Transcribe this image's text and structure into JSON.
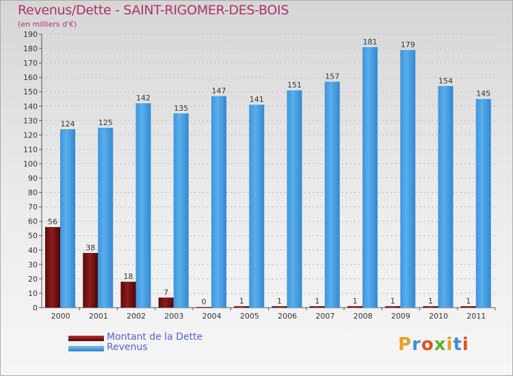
{
  "chart_data": {
    "type": "bar",
    "title": "Revenus/Dette - SAINT-RIGOMER-DES-BOIS",
    "subtitle": "(en milliers d'€)",
    "categories": [
      "2000",
      "2001",
      "2002",
      "2003",
      "2004",
      "2005",
      "2006",
      "2007",
      "2008",
      "2009",
      "2010",
      "2011"
    ],
    "series": [
      {
        "name": "Montant de la Dette",
        "values": [
          56,
          38,
          18,
          7,
          0,
          1,
          1,
          1,
          1,
          1,
          1,
          1
        ],
        "color": "#7a1414"
      },
      {
        "name": "Revenus",
        "values": [
          124,
          125,
          142,
          135,
          147,
          141,
          151,
          157,
          181,
          179,
          154,
          145
        ],
        "color": "#4fa3e6"
      }
    ],
    "ylim": [
      0,
      190
    ],
    "ytick_step": 10,
    "grid": true,
    "legend_position": "bottom-left"
  },
  "logo": {
    "letters": [
      "P",
      "r",
      "o",
      "x",
      "i",
      "t",
      "i"
    ],
    "colors": [
      "#e8a020",
      "#3a8fd8",
      "#e05020",
      "#5ab030",
      "#e8a020",
      "#3a8fd8",
      "#e05020"
    ]
  }
}
